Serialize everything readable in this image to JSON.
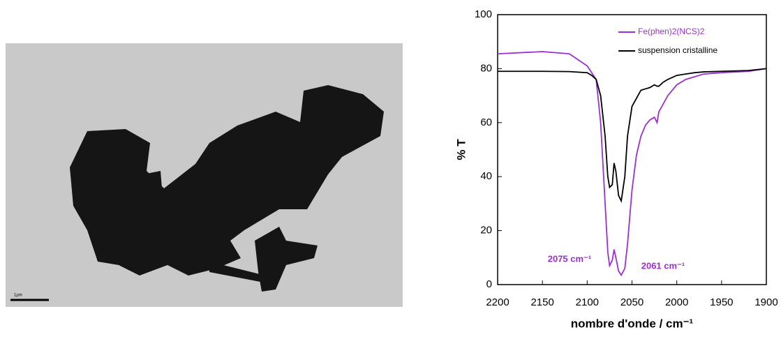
{
  "image": {
    "scale_bar_label": "1µm"
  },
  "chart_data": {
    "type": "line",
    "xlabel": "nombre d'onde / cm⁻¹",
    "ylabel": "% T",
    "xlim": [
      2200,
      1900
    ],
    "ylim": [
      0,
      100
    ],
    "xticks": [
      2200,
      2150,
      2100,
      2050,
      2000,
      1950,
      1900
    ],
    "yticks": [
      0,
      20,
      40,
      60,
      80,
      100
    ],
    "legend": "upper right",
    "annotations": [
      "2075 cm⁻¹",
      "2061 cm⁻¹"
    ],
    "annotation_color": "#9b30d0",
    "x": [
      2200,
      2150,
      2120,
      2100,
      2095,
      2090,
      2085,
      2080,
      2077,
      2075,
      2072,
      2070,
      2068,
      2065,
      2062,
      2058,
      2055,
      2050,
      2045,
      2040,
      2035,
      2030,
      2025,
      2022,
      2020,
      2015,
      2010,
      2000,
      1990,
      1980,
      1970,
      1950,
      1920,
      1900
    ],
    "series": [
      {
        "name": "Fe(phen)2(NCS)2",
        "color": "#9b30d0",
        "values": [
          85.5,
          86.3,
          85.5,
          81,
          78.5,
          76,
          60,
          30,
          12,
          7,
          9,
          13,
          10,
          5,
          3.5,
          6,
          15,
          35,
          48,
          55,
          59,
          61,
          62,
          60,
          64,
          67,
          70,
          74,
          76,
          77,
          78,
          78.5,
          79,
          80
        ]
      },
      {
        "name": "suspension cristalline",
        "color": "#000000",
        "values": [
          79,
          79,
          78.9,
          78.5,
          77.5,
          76,
          70,
          55,
          40,
          36,
          37,
          45,
          42,
          33,
          31,
          40,
          55,
          66,
          69,
          72,
          72.5,
          73,
          74,
          73.5,
          73.5,
          75,
          76,
          77.5,
          78,
          78.5,
          78.8,
          79,
          79.3,
          80
        ]
      }
    ]
  }
}
